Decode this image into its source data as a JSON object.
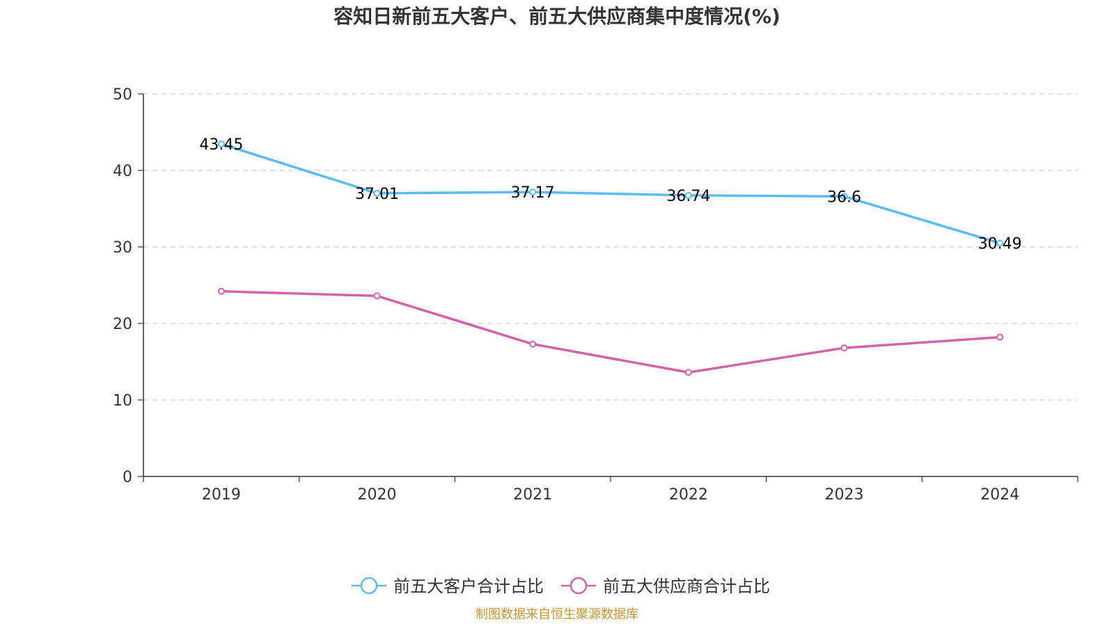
{
  "chart_data": {
    "type": "line",
    "title": "容知日新前五大客户、前五大供应商集中度情况(%)",
    "categories": [
      "2019",
      "2020",
      "2021",
      "2022",
      "2023",
      "2024"
    ],
    "ylim": [
      0,
      50
    ],
    "yticks": [
      0,
      10,
      20,
      30,
      40,
      50
    ],
    "grid": true,
    "legend_position": "bottom",
    "series": [
      {
        "name": "前五大客户合计占比",
        "color": "#5bbcf2",
        "values": [
          43.45,
          37.01,
          37.17,
          36.74,
          36.6,
          30.49
        ],
        "show_labels": true
      },
      {
        "name": "前五大供应商合计占比",
        "color": "#d462a8",
        "values": [
          24.2,
          23.6,
          17.3,
          13.6,
          16.8,
          18.2
        ],
        "show_labels": false
      }
    ],
    "source": "制图数据来自恒生聚源数据库",
    "source_color": "#c8962e"
  }
}
